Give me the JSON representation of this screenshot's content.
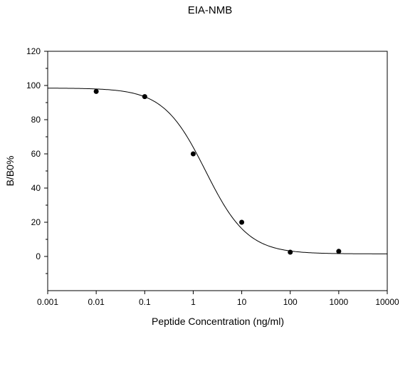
{
  "chart_data": {
    "type": "scatter",
    "title": "EIA-NMB",
    "xlabel": "Peptide Concentration (ng/ml)",
    "ylabel": "B/B0%",
    "xscale": "log",
    "xlim": [
      0.001,
      10000
    ],
    "ylim": [
      -20,
      120
    ],
    "xticks": [
      0.001,
      0.01,
      0.1,
      1,
      10,
      100,
      1000,
      10000
    ],
    "xtick_labels": [
      "0.001",
      "0.01",
      "0.1",
      "1",
      "10",
      "100",
      "1000",
      "10000"
    ],
    "yticks": [
      0,
      20,
      40,
      60,
      80,
      100,
      120
    ],
    "ytick_labels": [
      "0",
      "20",
      "40",
      "60",
      "80",
      "100",
      "120"
    ],
    "grid": false,
    "series": [
      {
        "points": [
          {
            "x": 0.01,
            "y": 96.5
          },
          {
            "x": 0.1,
            "y": 93.5
          },
          {
            "x": 1,
            "y": 60
          },
          {
            "x": 10,
            "y": 20
          },
          {
            "x": 100,
            "y": 2.5
          },
          {
            "x": 1000,
            "y": 3
          }
        ],
        "fit_curve": {
          "model": "four-parameter logistic",
          "top": 98.5,
          "bottom": 1.5,
          "ec50": 1.8,
          "hill_slope": 1.0
        }
      }
    ]
  }
}
